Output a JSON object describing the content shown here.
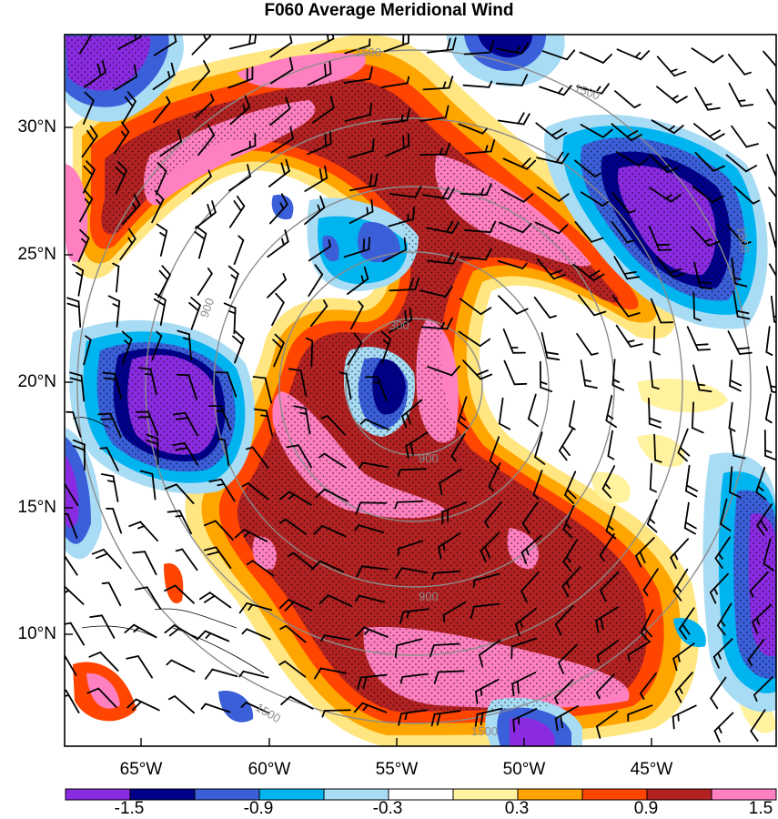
{
  "title": "F060 Average Meridional Wind",
  "latitude_labels": [
    "30°N",
    "25°N",
    "20°N",
    "15°N",
    "10°N"
  ],
  "longitude_labels": [
    "65°W",
    "60°W",
    "55°W",
    "50°W",
    "45°W"
  ],
  "radius_contour_labels": [
    "300",
    "900",
    "1500"
  ],
  "colorbar": {
    "labels": [
      "-1.5",
      "-0.9",
      "-0.3",
      "0.3",
      "0.9",
      "1.5"
    ],
    "colors": [
      "#8a2be2",
      "#00008b",
      "#3a5fd9",
      "#00b4f0",
      "#a8dcf5",
      "#ffffff",
      "#fff3a0",
      "#ffa500",
      "#ff4500",
      "#b22222",
      "#ff80c0"
    ]
  }
}
